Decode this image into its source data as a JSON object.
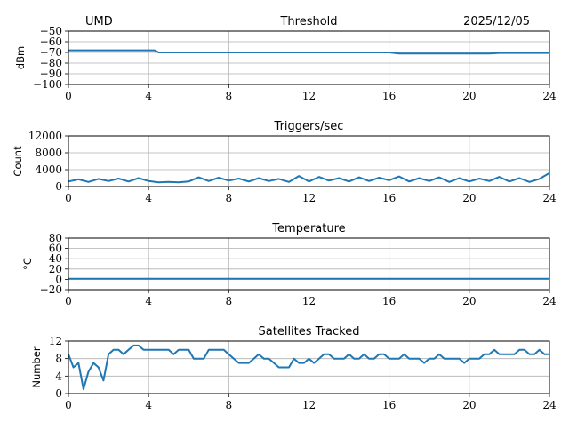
{
  "header": {
    "station": "UMD",
    "date": "2025/12/05"
  },
  "colors": {
    "line": "#1f77b4",
    "grid": "#b0b0b0"
  },
  "chart_data": [
    {
      "type": "line",
      "title": "Threshold",
      "ylabel": "dBm",
      "xlim": [
        0,
        24
      ],
      "ylim": [
        -100,
        -50
      ],
      "xticks": [
        "0",
        "4",
        "8",
        "12",
        "16",
        "20",
        "24"
      ],
      "yticks": [
        {
          "v": -100,
          "label": "−100"
        },
        {
          "v": -90,
          "label": "−90"
        },
        {
          "v": -80,
          "label": "−80"
        },
        {
          "v": -70,
          "label": "−70"
        },
        {
          "v": -60,
          "label": "−60"
        },
        {
          "v": -50,
          "label": "−50"
        }
      ],
      "grid": true,
      "x": [
        0,
        1,
        2,
        3,
        4,
        4.3,
        4.5,
        5,
        6,
        7,
        8,
        9,
        10,
        11,
        12,
        13,
        14,
        15,
        16,
        16.5,
        17,
        18,
        19,
        20,
        21,
        21.5,
        22,
        23,
        24
      ],
      "y": [
        -68,
        -68,
        -68,
        -68,
        -68,
        -68,
        -70,
        -70,
        -70,
        -70,
        -70,
        -70,
        -70,
        -70,
        -70,
        -70,
        -70,
        -70,
        -70,
        -71,
        -71,
        -71,
        -71,
        -71,
        -71,
        -70.5,
        -70.5,
        -70.5,
        -70.5
      ]
    },
    {
      "type": "line",
      "title": "Triggers/sec",
      "ylabel": "Count",
      "xlim": [
        0,
        24
      ],
      "ylim": [
        0,
        12000
      ],
      "xticks": [
        "0",
        "4",
        "8",
        "12",
        "16",
        "20",
        "24"
      ],
      "yticks": [
        {
          "v": 0,
          "label": "0"
        },
        {
          "v": 4000,
          "label": "4000"
        },
        {
          "v": 8000,
          "label": "8000"
        },
        {
          "v": 12000,
          "label": "12000"
        }
      ],
      "grid": true,
      "x": [
        0,
        0.5,
        1,
        1.5,
        2,
        2.5,
        3,
        3.5,
        4,
        4.5,
        5,
        5.5,
        6,
        6.5,
        7,
        7.5,
        8,
        8.5,
        9,
        9.5,
        10,
        10.5,
        11,
        11.5,
        12,
        12.5,
        13,
        13.5,
        14,
        14.5,
        15,
        15.5,
        16,
        16.5,
        17,
        17.5,
        18,
        18.5,
        19,
        19.5,
        20,
        20.5,
        21,
        21.5,
        22,
        22.5,
        23,
        23.5,
        24
      ],
      "y": [
        1200,
        1700,
        1100,
        1800,
        1300,
        1900,
        1200,
        2000,
        1300,
        1000,
        1100,
        1000,
        1200,
        2200,
        1300,
        2100,
        1400,
        1900,
        1200,
        2000,
        1300,
        1800,
        1100,
        2500,
        1200,
        2300,
        1400,
        2000,
        1200,
        2200,
        1300,
        2100,
        1500,
        2400,
        1200,
        2000,
        1300,
        2200,
        1100,
        2000,
        1200,
        1900,
        1300,
        2300,
        1200,
        2000,
        1100,
        1800,
        3200
      ]
    },
    {
      "type": "line",
      "title": "Temperature",
      "ylabel": "°C",
      "xlim": [
        0,
        24
      ],
      "ylim": [
        -20,
        80
      ],
      "xticks": [
        "0",
        "4",
        "8",
        "12",
        "16",
        "20",
        "24"
      ],
      "yticks": [
        {
          "v": -20,
          "label": "−20"
        },
        {
          "v": 0,
          "label": "0"
        },
        {
          "v": 20,
          "label": "20"
        },
        {
          "v": 40,
          "label": "40"
        },
        {
          "v": 60,
          "label": "60"
        },
        {
          "v": 80,
          "label": "80"
        }
      ],
      "grid": true,
      "x": [
        0,
        24
      ],
      "y": [
        1,
        1
      ]
    },
    {
      "type": "line",
      "title": "Satellites Tracked",
      "ylabel": "Number",
      "xlim": [
        0,
        24
      ],
      "ylim": [
        0,
        12
      ],
      "xticks": [
        "0",
        "4",
        "8",
        "12",
        "16",
        "20",
        "24"
      ],
      "yticks": [
        {
          "v": 0,
          "label": "0"
        },
        {
          "v": 4,
          "label": "4"
        },
        {
          "v": 8,
          "label": "8"
        },
        {
          "v": 12,
          "label": "12"
        }
      ],
      "grid": true,
      "x": [
        0,
        0.25,
        0.5,
        0.75,
        1,
        1.25,
        1.5,
        1.75,
        2,
        2.25,
        2.5,
        2.75,
        3,
        3.25,
        3.5,
        3.75,
        4,
        4.25,
        4.5,
        4.75,
        5,
        5.25,
        5.5,
        5.75,
        6,
        6.25,
        6.5,
        6.75,
        7,
        7.25,
        7.5,
        7.75,
        8,
        8.25,
        8.5,
        8.75,
        9,
        9.25,
        9.5,
        9.75,
        10,
        10.25,
        10.5,
        10.75,
        11,
        11.25,
        11.5,
        11.75,
        12,
        12.25,
        12.5,
        12.75,
        13,
        13.25,
        13.5,
        13.75,
        14,
        14.25,
        14.5,
        14.75,
        15,
        15.25,
        15.5,
        15.75,
        16,
        16.25,
        16.5,
        16.75,
        17,
        17.25,
        17.5,
        17.75,
        18,
        18.25,
        18.5,
        18.75,
        19,
        19.25,
        19.5,
        19.75,
        20,
        20.25,
        20.5,
        20.75,
        21,
        21.25,
        21.5,
        21.75,
        22,
        22.25,
        22.5,
        22.75,
        23,
        23.25,
        23.5,
        23.75,
        24
      ],
      "y": [
        9,
        6,
        7,
        1,
        5,
        7,
        6,
        3,
        9,
        10,
        10,
        9,
        10,
        11,
        11,
        10,
        10,
        10,
        10,
        10,
        10,
        9,
        10,
        10,
        10,
        8,
        8,
        8,
        10,
        10,
        10,
        10,
        9,
        8,
        7,
        7,
        7,
        8,
        9,
        8,
        8,
        7,
        6,
        6,
        6,
        8,
        7,
        7,
        8,
        7,
        8,
        9,
        9,
        8,
        8,
        8,
        9,
        8,
        8,
        9,
        8,
        8,
        9,
        9,
        8,
        8,
        8,
        9,
        8,
        8,
        8,
        7,
        8,
        8,
        9,
        8,
        8,
        8,
        8,
        7,
        8,
        8,
        8,
        9,
        9,
        10,
        9,
        9,
        9,
        9,
        10,
        10,
        9,
        9,
        10,
        9,
        9
      ]
    }
  ]
}
